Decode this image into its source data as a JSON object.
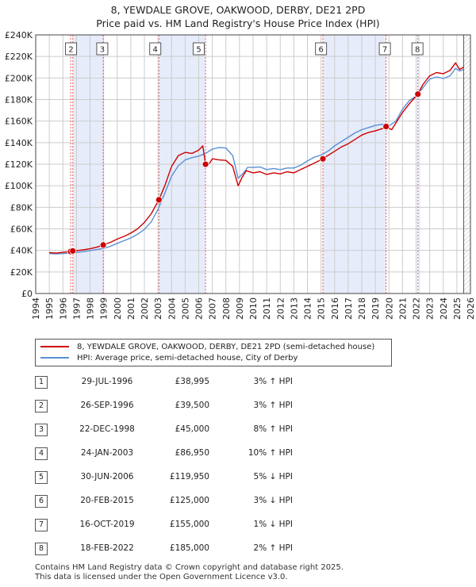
{
  "title_line1": "8, YEWDALE GROVE, OAKWOOD, DERBY, DE21 2PD",
  "title_line2": "Price paid vs. HM Land Registry's House Price Index (HPI)",
  "colors": {
    "property": "#cc0000",
    "hpi": "#5b8fd4",
    "band": "#e6ecfa",
    "vline": "#e06060",
    "grid": "#cccccc"
  },
  "chart_data": {
    "type": "line",
    "xlim": [
      1994.0,
      2026.0
    ],
    "ylim": [
      0,
      240000
    ],
    "y_ticks": [
      0,
      20000,
      40000,
      60000,
      80000,
      100000,
      120000,
      140000,
      160000,
      180000,
      200000,
      220000,
      240000
    ],
    "y_tick_labels": [
      "£0",
      "£20K",
      "£40K",
      "£60K",
      "£80K",
      "£100K",
      "£120K",
      "£140K",
      "£160K",
      "£180K",
      "£200K",
      "£220K",
      "£240K"
    ],
    "x_ticks": [
      1994,
      1995,
      1996,
      1997,
      1998,
      1999,
      2000,
      2001,
      2002,
      2003,
      2004,
      2005,
      2006,
      2007,
      2008,
      2009,
      2010,
      2011,
      2012,
      2013,
      2014,
      2015,
      2016,
      2017,
      2018,
      2019,
      2020,
      2021,
      2022,
      2023,
      2024,
      2025,
      2026
    ],
    "x_tick_labels": [
      "1994",
      "1995",
      "1996",
      "1997",
      "1998",
      "1999",
      "2000",
      "2001",
      "2002",
      "2003",
      "2004",
      "2005",
      "2006",
      "2007",
      "2008",
      "2009",
      "2010",
      "2011",
      "2012",
      "2013",
      "2014",
      "2015",
      "2016",
      "2017",
      "2018",
      "2019",
      "2020",
      "2021",
      "2022",
      "2023",
      "2024",
      "2025",
      "2026"
    ],
    "shaded_bands": [
      [
        1996.73,
        1998.97
      ],
      [
        2003.07,
        2006.5
      ],
      [
        2015.14,
        2019.79
      ],
      [
        2022.13,
        2022.3
      ]
    ],
    "data_end_year": 2025.5,
    "series": [
      {
        "name": "8, YEWDALE GROVE, OAKWOOD, DERBY, DE21 2PD (semi-detached house)",
        "x": [
          1995.0,
          1995.5,
          1996.0,
          1996.57,
          1996.73,
          1997.0,
          1997.5,
          1998.0,
          1998.5,
          1998.97,
          1999.5,
          2000.0,
          2000.5,
          2001.0,
          2001.5,
          2002.0,
          2002.5,
          2003.07,
          2003.5,
          2004.0,
          2004.5,
          2005.0,
          2005.5,
          2006.0,
          2006.3,
          2006.5,
          2006.8,
          2007.0,
          2007.5,
          2008.0,
          2008.5,
          2008.9,
          2009.2,
          2009.5,
          2010.0,
          2010.5,
          2011.0,
          2011.5,
          2012.0,
          2012.5,
          2013.0,
          2013.5,
          2014.0,
          2014.5,
          2015.14,
          2015.5,
          2016.0,
          2016.5,
          2017.0,
          2017.5,
          2018.0,
          2018.5,
          2019.0,
          2019.5,
          2019.79,
          2020.2,
          2020.5,
          2021.0,
          2021.5,
          2022.13,
          2022.5,
          2023.0,
          2023.5,
          2024.0,
          2024.5,
          2024.9,
          2025.2,
          2025.5
        ],
        "y": [
          38000,
          37500,
          38200,
          38995,
          39500,
          39800,
          40500,
          41500,
          43000,
          45000,
          47500,
          50500,
          53000,
          56000,
          60000,
          66000,
          74000,
          86950,
          100000,
          118000,
          128000,
          131000,
          130000,
          133000,
          137000,
          119950,
          121000,
          125000,
          124000,
          123500,
          118000,
          100000,
          108000,
          114000,
          112000,
          113000,
          110500,
          112000,
          111000,
          113000,
          112000,
          115000,
          118000,
          121000,
          125000,
          128000,
          132000,
          136000,
          139000,
          143000,
          147000,
          149500,
          151000,
          153000,
          155000,
          152000,
          158000,
          168000,
          176000,
          185000,
          194000,
          202000,
          205000,
          204000,
          207000,
          214000,
          208000,
          210000
        ]
      },
      {
        "name": "HPI: Average price, semi-detached house, City of Derby",
        "x": [
          1995.0,
          1995.5,
          1996.0,
          1996.5,
          1997.0,
          1997.5,
          1998.0,
          1998.5,
          1999.0,
          1999.5,
          2000.0,
          2000.5,
          2001.0,
          2001.5,
          2002.0,
          2002.5,
          2003.0,
          2003.5,
          2004.0,
          2004.5,
          2005.0,
          2005.5,
          2006.0,
          2006.5,
          2007.0,
          2007.5,
          2008.0,
          2008.5,
          2008.9,
          2009.3,
          2009.6,
          2010.0,
          2010.5,
          2011.0,
          2011.5,
          2012.0,
          2012.5,
          2013.0,
          2013.5,
          2014.0,
          2014.5,
          2015.0,
          2015.5,
          2016.0,
          2016.5,
          2017.0,
          2017.5,
          2018.0,
          2018.5,
          2019.0,
          2019.5,
          2020.0,
          2020.5,
          2021.0,
          2021.5,
          2022.0,
          2022.5,
          2023.0,
          2023.5,
          2024.0,
          2024.5,
          2024.9,
          2025.2,
          2025.5
        ],
        "y": [
          37200,
          36800,
          37000,
          37500,
          38100,
          38800,
          39800,
          40800,
          41800,
          43800,
          46500,
          49000,
          51500,
          55000,
          59500,
          66500,
          78000,
          93000,
          109000,
          118500,
          124000,
          126000,
          127500,
          130000,
          134000,
          135500,
          135000,
          128000,
          107000,
          112000,
          117000,
          117000,
          117500,
          115000,
          116000,
          115000,
          116500,
          116500,
          119000,
          123000,
          126500,
          128500,
          132000,
          137000,
          141000,
          145000,
          149000,
          152000,
          154000,
          156000,
          157000,
          155500,
          160000,
          171000,
          179000,
          183000,
          191000,
          199000,
          201000,
          199500,
          202000,
          209000,
          206500,
          208000
        ]
      }
    ],
    "sale_markers": [
      {
        "id": "1",
        "x": 1996.57,
        "y": 38995
      },
      {
        "id": "2",
        "x": 1996.73,
        "y": 39500
      },
      {
        "id": "3",
        "x": 1998.97,
        "y": 45000
      },
      {
        "id": "4",
        "x": 2003.07,
        "y": 86950
      },
      {
        "id": "5",
        "x": 2006.5,
        "y": 119950
      },
      {
        "id": "6",
        "x": 2015.14,
        "y": 125000
      },
      {
        "id": "7",
        "x": 2019.79,
        "y": 155000
      },
      {
        "id": "8",
        "x": 2022.13,
        "y": 185000
      }
    ],
    "marker_labels": [
      {
        "id": "2",
        "x": 1996.6
      },
      {
        "id": "3",
        "x": 1998.9
      },
      {
        "id": "4",
        "x": 2002.8
      },
      {
        "id": "5",
        "x": 2006.0
      },
      {
        "id": "6",
        "x": 2015.0
      },
      {
        "id": "7",
        "x": 2019.7
      },
      {
        "id": "8",
        "x": 2022.1
      }
    ]
  },
  "legend": {
    "property_label": "8, YEWDALE GROVE, OAKWOOD, DERBY, DE21 2PD (semi-detached house)",
    "hpi_label": "HPI: Average price, semi-detached house, City of Derby"
  },
  "sales": [
    {
      "num": "1",
      "date": "29-JUL-1996",
      "price": "£38,995",
      "hpi": "3% ↑ HPI"
    },
    {
      "num": "2",
      "date": "26-SEP-1996",
      "price": "£39,500",
      "hpi": "3% ↑ HPI"
    },
    {
      "num": "3",
      "date": "22-DEC-1998",
      "price": "£45,000",
      "hpi": "8% ↑ HPI"
    },
    {
      "num": "4",
      "date": "24-JAN-2003",
      "price": "£86,950",
      "hpi": "10% ↑ HPI"
    },
    {
      "num": "5",
      "date": "30-JUN-2006",
      "price": "£119,950",
      "hpi": "5% ↓ HPI"
    },
    {
      "num": "6",
      "date": "20-FEB-2015",
      "price": "£125,000",
      "hpi": "3% ↓ HPI"
    },
    {
      "num": "7",
      "date": "16-OCT-2019",
      "price": "£155,000",
      "hpi": "1% ↓ HPI"
    },
    {
      "num": "8",
      "date": "18-FEB-2022",
      "price": "£185,000",
      "hpi": "2% ↑ HPI"
    }
  ],
  "footer_line1": "Contains HM Land Registry data © Crown copyright and database right 2025.",
  "footer_line2": "This data is licensed under the Open Government Licence v3.0."
}
